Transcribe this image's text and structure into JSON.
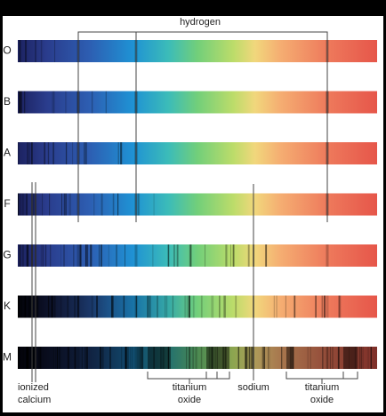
{
  "spectral_classes": [
    "O",
    "B",
    "A",
    "F",
    "G",
    "K",
    "M"
  ],
  "annotations": {
    "hydrogen": "hydrogen",
    "calcium": [
      "ionized",
      "calcium"
    ],
    "sodium": "sodium",
    "titanium_oxide_left": [
      "titanium",
      "oxide"
    ],
    "titanium_oxide_right": [
      "titanium",
      "oxide"
    ]
  }
}
